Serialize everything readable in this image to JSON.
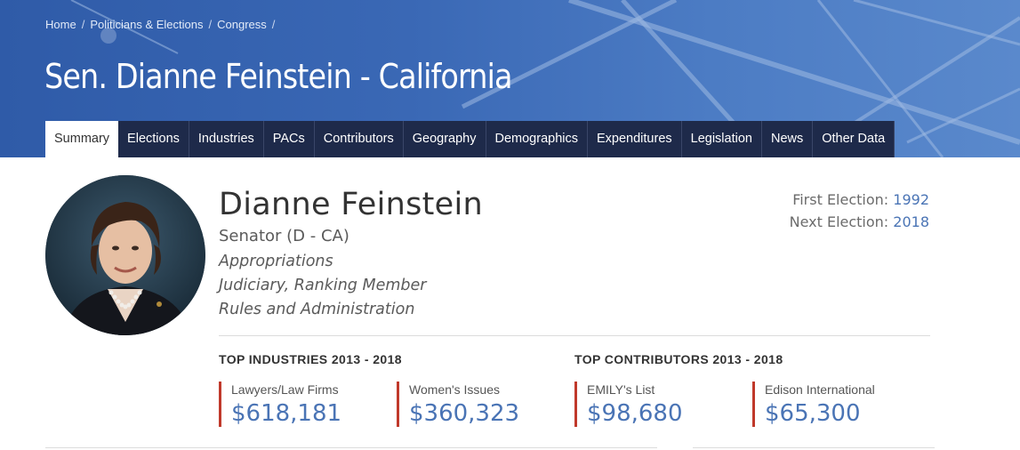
{
  "breadcrumb": {
    "items": [
      "Home",
      "Politicians & Elections",
      "Congress"
    ],
    "separator": "/"
  },
  "page_title": "Sen. Dianne Feinstein - California",
  "tabs": [
    {
      "label": "Summary",
      "active": true
    },
    {
      "label": "Elections"
    },
    {
      "label": "Industries"
    },
    {
      "label": "PACs"
    },
    {
      "label": "Contributors"
    },
    {
      "label": "Geography"
    },
    {
      "label": "Demographics"
    },
    {
      "label": "Expenditures"
    },
    {
      "label": "Legislation"
    },
    {
      "label": "News"
    },
    {
      "label": "Other Data"
    }
  ],
  "profile": {
    "name": "Dianne Feinstein",
    "role": "Senator (D - CA)",
    "committees": [
      "Appropriations",
      "Judiciary, Ranking Member",
      "Rules and Administration"
    ]
  },
  "elections": {
    "first_label": "First Election:",
    "first_year": "1992",
    "next_label": "Next Election:",
    "next_year": "2018"
  },
  "top_industries": {
    "heading": "TOP INDUSTRIES 2013 - 2018",
    "items": [
      {
        "label": "Lawyers/Law Firms",
        "value": "$618,181"
      },
      {
        "label": "Women's Issues",
        "value": "$360,323"
      }
    ]
  },
  "top_contributors": {
    "heading": "TOP CONTRIBUTORS 2013 - 2018",
    "items": [
      {
        "label": "EMILY's List",
        "value": "$98,680"
      },
      {
        "label": "Edison International",
        "value": "$65,300"
      }
    ]
  },
  "colors": {
    "banner": "#3a68b5",
    "tab_bg": "#1e2a4a",
    "accent_bar": "#c0392b",
    "link": "#4a74b5"
  }
}
